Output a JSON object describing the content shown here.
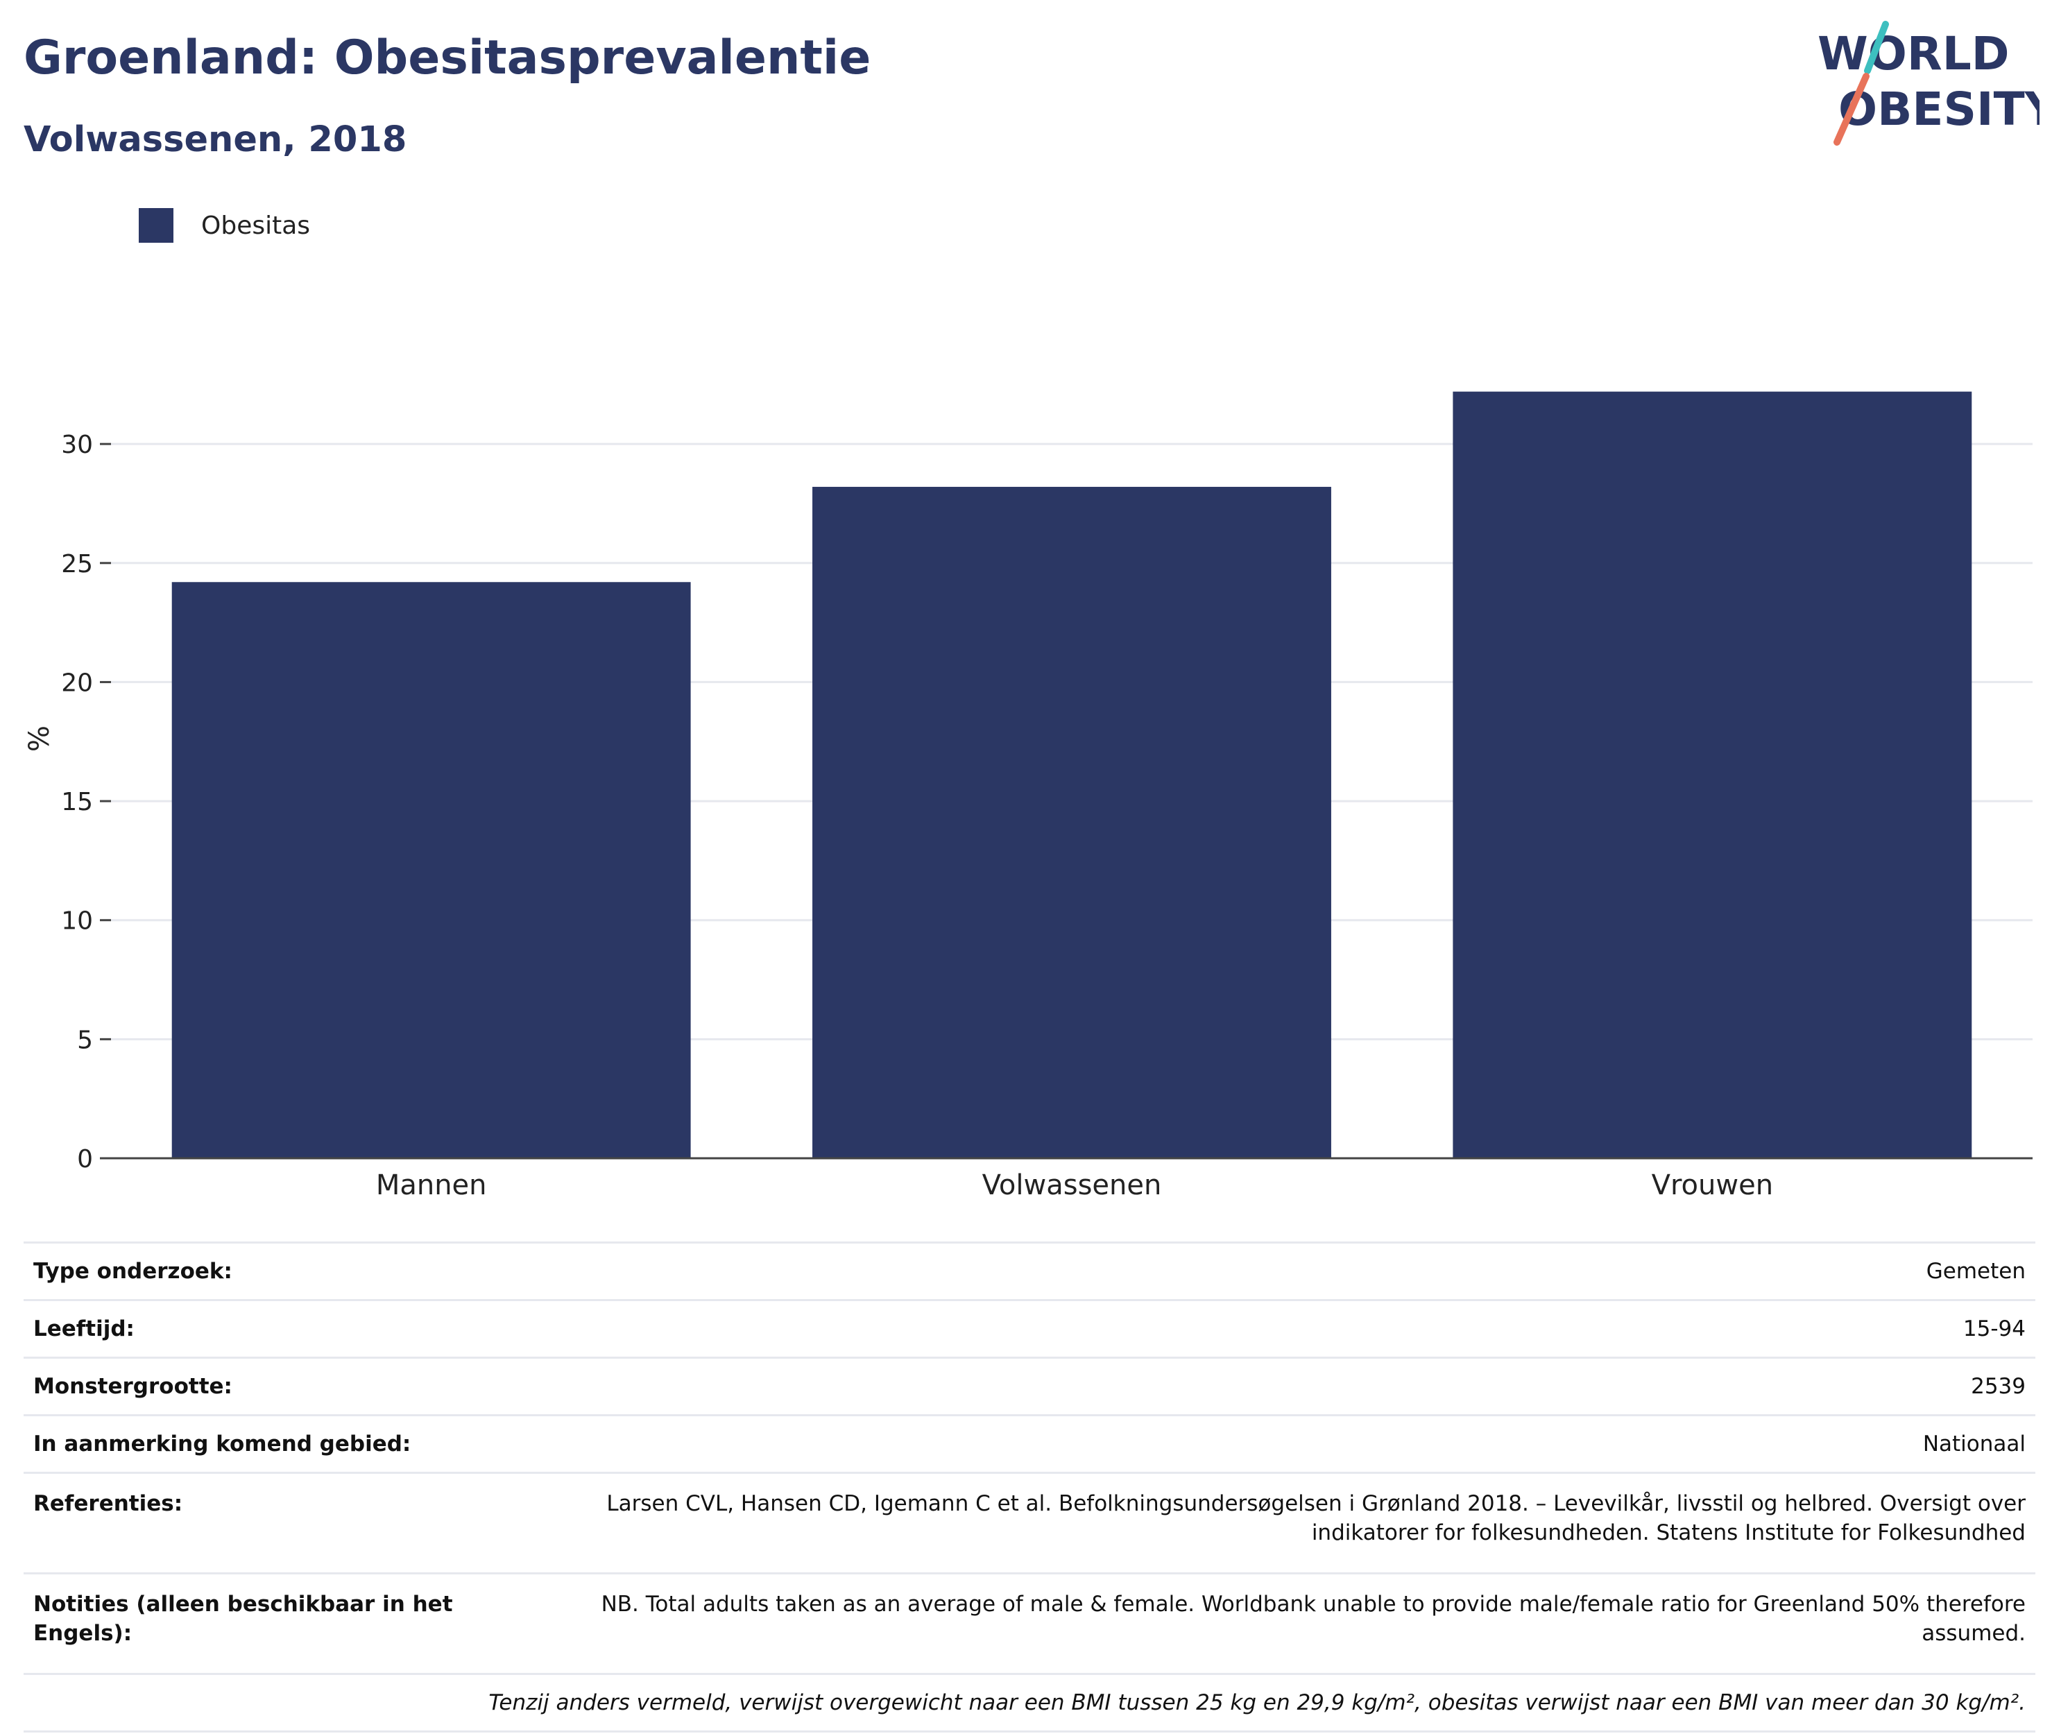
{
  "header": {
    "title": "Groenland: Obesitasprevalentie",
    "subtitle": "Volwassenen, 2018"
  },
  "logo": {
    "line1": "WORLD",
    "line2": "OBESITY",
    "colors": {
      "text": "#2b3764",
      "slash_top": "#3dbfbf",
      "slash_bottom": "#e8735a"
    }
  },
  "colors": {
    "bar": "#2b3764",
    "grid": "#e6e8ee",
    "axis": "#444444"
  },
  "chart_data": {
    "type": "bar",
    "categories": [
      "Mannen",
      "Volwassenen",
      "Vrouwen"
    ],
    "series": [
      {
        "name": "Obesitas",
        "values": [
          24.2,
          28.2,
          32.2
        ]
      }
    ],
    "xlabel": "",
    "ylabel": "%",
    "ylim": [
      0,
      33.5
    ],
    "yticks": [
      0,
      5,
      10,
      15,
      20,
      25,
      30
    ],
    "grid": true,
    "legend": "top-left"
  },
  "info": {
    "rows": [
      {
        "label": "Type onderzoek:",
        "value": "Gemeten"
      },
      {
        "label": "Leeftijd:",
        "value": "15-94"
      },
      {
        "label": "Monstergrootte:",
        "value": "2539"
      },
      {
        "label": "In aanmerking komend gebied:",
        "value": "Nationaal"
      },
      {
        "label": "Referenties:",
        "value": "Larsen CVL, Hansen CD, Igemann C et al. Befolkningsundersøgelsen i Grønland 2018. – Levevilkår, livsstil og helbred. Oversigt over indikatorer for folkesundheden. Statens Institute for Folkesundhed"
      },
      {
        "label": "Notities (alleen beschikbaar in het Engels):",
        "value": "NB. Total adults taken as an average of male & female. Worldbank unable to provide male/female ratio for Greenland 50% therefore assumed."
      }
    ],
    "footnote": "Tenzij anders vermeld, verwijst overgewicht naar een BMI tussen 25 kg en 29,9 kg/m², obesitas verwijst naar een BMI van meer dan 30 kg/m²."
  }
}
